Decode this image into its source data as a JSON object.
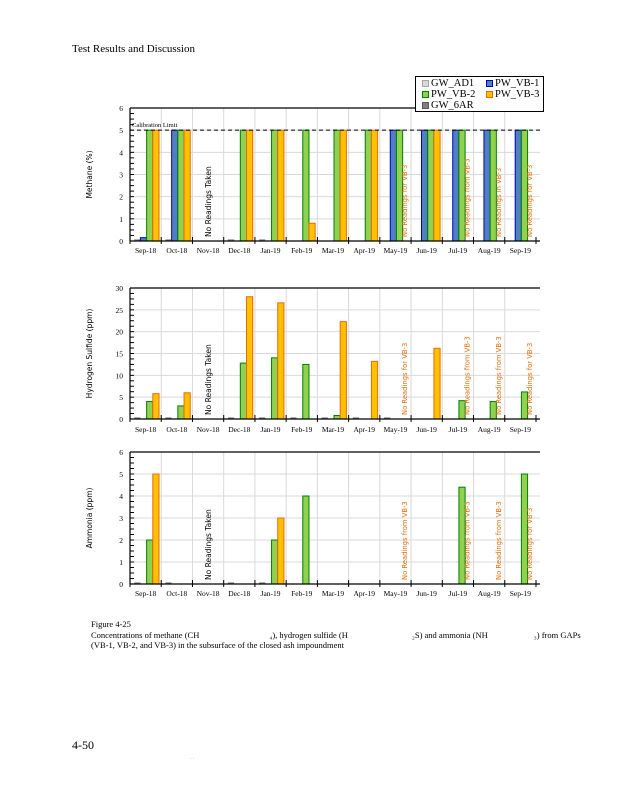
{
  "page": {
    "header": "Test Results and Discussion",
    "page_number": "4-50",
    "footer_mark": "· ·",
    "caption_title": "Figure 4-25",
    "caption_line1_a": "Concentrations of methane (CH",
    "caption_line1_b": "₄), hydrogen sulfide (H",
    "caption_line1_c": "₂S) and ammonia (NH",
    "caption_line1_d": "₃) from GAPs",
    "caption_line2": "(VB-1, VB-2, and VB-3) in the subsurface of the closed ash impoundment"
  },
  "legend": [
    {
      "name": "GW_AD1",
      "fill": "#D9D9D9",
      "stroke": "#A6A6A6"
    },
    {
      "name": "PW_VB-1",
      "fill": "#4F81BD",
      "stroke": "#0000CC"
    },
    {
      "name": "PW_VB-2",
      "fill": "#92D050",
      "stroke": "#008000"
    },
    {
      "name": "PW_VB-3",
      "fill": "#FFC000",
      "stroke": "#E36C09"
    },
    {
      "name": "GW_6AR",
      "fill": "#7F7F7F",
      "stroke": "#595959"
    }
  ],
  "chart_data": [
    {
      "type": "bar",
      "id": "methane",
      "ylabel": "Methane (%)",
      "ylim": [
        0,
        6
      ],
      "yticks": [
        "0",
        "1",
        "2",
        "3",
        "4",
        "5",
        "6"
      ],
      "categories": [
        "Sep-18",
        "Oct-18",
        "Nov-18",
        "Dec-18",
        "Jan-19",
        "Feb-19",
        "Mar-19",
        "Apr-19",
        "May-19",
        "Jun-19",
        "Jul-19",
        "Aug-19",
        "Sep-19"
      ],
      "reference_line": {
        "value": 5,
        "label": "Calibration Limit"
      },
      "series": [
        {
          "name": "GW_AD1",
          "values": [
            0.03,
            0.03,
            null,
            0.05,
            0.05,
            null,
            null,
            null,
            null,
            null,
            null,
            null,
            null
          ]
        },
        {
          "name": "PW_VB-1",
          "values": [
            0.15,
            5,
            null,
            null,
            null,
            null,
            null,
            null,
            5,
            5,
            5,
            5,
            5
          ]
        },
        {
          "name": "PW_VB-2",
          "values": [
            5,
            5,
            null,
            5,
            5,
            5,
            5,
            5,
            5,
            5,
            5,
            5,
            5
          ]
        },
        {
          "name": "PW_VB-3",
          "values": [
            5,
            5,
            null,
            5,
            5,
            0.8,
            5,
            5,
            null,
            5,
            null,
            null,
            null
          ]
        }
      ],
      "annotations": [
        {
          "category": "Nov-18",
          "text": "No Readings Taken",
          "color": "#000000"
        },
        {
          "category": "May-19",
          "text": "No Readings for VB-3",
          "color": "#E36C09"
        },
        {
          "category": "Jul-19",
          "text": "No Readings from VB-3",
          "color": "#E36C09"
        },
        {
          "category": "Aug-19",
          "text": "No Readings in VB-3",
          "color": "#E36C09"
        },
        {
          "category": "Sep-19",
          "text": "No Readings for VB-3",
          "color": "#E36C09"
        }
      ]
    },
    {
      "type": "bar",
      "id": "h2s",
      "ylabel": "Hydrogen Sulfide (ppm)",
      "ylim": [
        0,
        30
      ],
      "yticks": [
        "0",
        "5",
        "10",
        "15",
        "20",
        "25",
        "30"
      ],
      "categories": [
        "Sep-18",
        "Oct-18",
        "Nov-18",
        "Dec-18",
        "Jan-19",
        "Feb-19",
        "Mar-19",
        "Apr-19",
        "May-19",
        "Jun-19",
        "Jul-19",
        "Aug-19",
        "Sep-19"
      ],
      "series": [
        {
          "name": "GW_AD1",
          "values": [
            0.1,
            0.1,
            null,
            0.1,
            0.1,
            0.1,
            0.1,
            0.1,
            0.1,
            null,
            null,
            null,
            null
          ]
        },
        {
          "name": "PW_VB-1",
          "values": [
            null,
            null,
            null,
            null,
            null,
            null,
            null,
            null,
            null,
            null,
            null,
            null,
            null
          ]
        },
        {
          "name": "PW_VB-2",
          "values": [
            4,
            3,
            null,
            12.8,
            14,
            12.5,
            0.8,
            null,
            null,
            null,
            4.2,
            4,
            6.2
          ]
        },
        {
          "name": "PW_VB-3",
          "values": [
            5.8,
            6,
            null,
            28,
            26.6,
            null,
            22.3,
            13.2,
            null,
            16.2,
            null,
            null,
            null
          ]
        }
      ],
      "annotations": [
        {
          "category": "Nov-18",
          "text": "No Readings Taken",
          "color": "#000000"
        },
        {
          "category": "May-19",
          "text": "No Readings for VB-3",
          "color": "#E36C09"
        },
        {
          "category": "Jul-19",
          "text": "No Readings from VB-3",
          "color": "#E36C09"
        },
        {
          "category": "Aug-19",
          "text": "No Readings from VB-3",
          "color": "#E36C09"
        },
        {
          "category": "Sep-19",
          "text": "No Readings for VB-3",
          "color": "#E36C09"
        }
      ]
    },
    {
      "type": "bar",
      "id": "ammonia",
      "ylabel": "Ammonia (ppm)",
      "ylim": [
        0,
        6
      ],
      "yticks": [
        "0",
        "1",
        "2",
        "3",
        "4",
        "5",
        "6"
      ],
      "categories": [
        "Sep-18",
        "Oct-18",
        "Nov-18",
        "Dec-18",
        "Jan-19",
        "Feb-19",
        "Mar-19",
        "Apr-19",
        "May-19",
        "Jun-19",
        "Jul-19",
        "Aug-19",
        "Sep-19"
      ],
      "series": [
        {
          "name": "GW_AD1",
          "values": [
            0.02,
            0.02,
            null,
            0.02,
            0.02,
            null,
            null,
            null,
            null,
            null,
            null,
            null,
            null
          ]
        },
        {
          "name": "PW_VB-1",
          "values": [
            null,
            null,
            null,
            null,
            null,
            null,
            null,
            null,
            null,
            null,
            null,
            null,
            null
          ]
        },
        {
          "name": "PW_VB-2",
          "values": [
            2,
            null,
            null,
            null,
            2,
            4,
            null,
            null,
            null,
            null,
            4.4,
            null,
            5
          ]
        },
        {
          "name": "PW_VB-3",
          "values": [
            5,
            null,
            null,
            null,
            3,
            null,
            null,
            null,
            null,
            null,
            null,
            null,
            null
          ]
        }
      ],
      "annotations": [
        {
          "category": "Nov-18",
          "text": "No Readings Taken",
          "color": "#000000"
        },
        {
          "category": "May-19",
          "text": "No Readings from VB-3",
          "color": "#E36C09"
        },
        {
          "category": "Jul-19",
          "text": "No Readings from VB-3",
          "color": "#E36C09"
        },
        {
          "category": "Aug-19",
          "text": "No Readings from VB-3",
          "color": "#E36C09"
        },
        {
          "category": "Sep-19",
          "text": "No Readings for VB-3",
          "color": "#E36C09"
        }
      ]
    }
  ]
}
